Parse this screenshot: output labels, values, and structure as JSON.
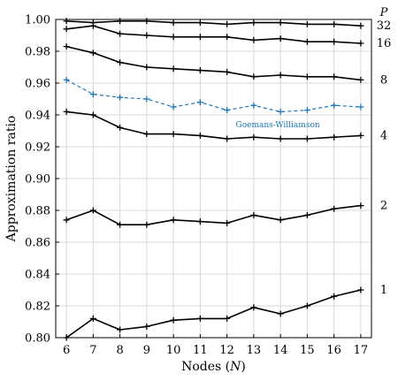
{
  "chart_data": {
    "type": "line",
    "xlabel": "Nodes ($N$)",
    "xlabel_main": "Nodes (",
    "xlabel_var": "N",
    "xlabel_tail": ")",
    "ylabel": "Approximation ratio",
    "x": [
      6,
      7,
      8,
      9,
      10,
      11,
      12,
      13,
      14,
      15,
      16,
      17
    ],
    "xlim": [
      5.6,
      17.4
    ],
    "ylim": [
      0.8,
      1.0
    ],
    "yticks": [
      0.8,
      0.82,
      0.84,
      0.86,
      0.88,
      0.9,
      0.92,
      0.94,
      0.96,
      0.98,
      1.0
    ],
    "ytick_labels": [
      "0.80",
      "0.82",
      "0.84",
      "0.86",
      "0.88",
      "0.90",
      "0.92",
      "0.94",
      "0.96",
      "0.98",
      "1.00"
    ],
    "xtick_labels": [
      "6",
      "7",
      "8",
      "9",
      "10",
      "11",
      "12",
      "13",
      "14",
      "15",
      "16",
      "17"
    ],
    "grid": true,
    "right_axis_title": "P",
    "series": [
      {
        "name": "1",
        "style": "solid",
        "color": "#000000",
        "values": [
          0.8,
          0.812,
          0.805,
          0.807,
          0.811,
          0.812,
          0.812,
          0.819,
          0.815,
          0.82,
          0.826,
          0.83
        ]
      },
      {
        "name": "2",
        "style": "solid",
        "color": "#000000",
        "values": [
          0.874,
          0.88,
          0.871,
          0.871,
          0.874,
          0.873,
          0.872,
          0.877,
          0.874,
          0.877,
          0.881,
          0.883
        ]
      },
      {
        "name": "4",
        "style": "solid",
        "color": "#000000",
        "values": [
          0.942,
          0.94,
          0.932,
          0.928,
          0.928,
          0.927,
          0.925,
          0.926,
          0.925,
          0.925,
          0.926,
          0.927
        ]
      },
      {
        "name": "Goemans-Williamson",
        "style": "dashed",
        "color": "#1f77b4",
        "values": [
          0.962,
          0.953,
          0.951,
          0.95,
          0.945,
          0.948,
          0.943,
          0.946,
          0.942,
          0.943,
          0.946,
          0.945
        ]
      },
      {
        "name": "8",
        "style": "solid",
        "color": "#000000",
        "values": [
          0.983,
          0.979,
          0.973,
          0.97,
          0.969,
          0.968,
          0.967,
          0.964,
          0.965,
          0.964,
          0.964,
          0.962
        ]
      },
      {
        "name": "16",
        "style": "solid",
        "color": "#000000",
        "values": [
          0.994,
          0.996,
          0.991,
          0.99,
          0.989,
          0.989,
          0.989,
          0.987,
          0.988,
          0.986,
          0.986,
          0.985
        ]
      },
      {
        "name": "32",
        "style": "solid",
        "color": "#000000",
        "values": [
          0.999,
          0.998,
          0.999,
          0.999,
          0.998,
          0.998,
          0.997,
          0.998,
          0.998,
          0.997,
          0.997,
          0.996
        ]
      }
    ],
    "right_labels": [
      {
        "text": "32",
        "y": 0.996
      },
      {
        "text": "16",
        "y": 0.985
      },
      {
        "text": "8",
        "y": 0.962
      },
      {
        "text": "4",
        "y": 0.927
      },
      {
        "text": "2",
        "y": 0.883
      },
      {
        "text": "1",
        "y": 0.83
      }
    ],
    "annotation": {
      "text": "Goemans-Williamson",
      "x": 13.9,
      "y": 0.934,
      "color": "#1f77b4"
    }
  }
}
